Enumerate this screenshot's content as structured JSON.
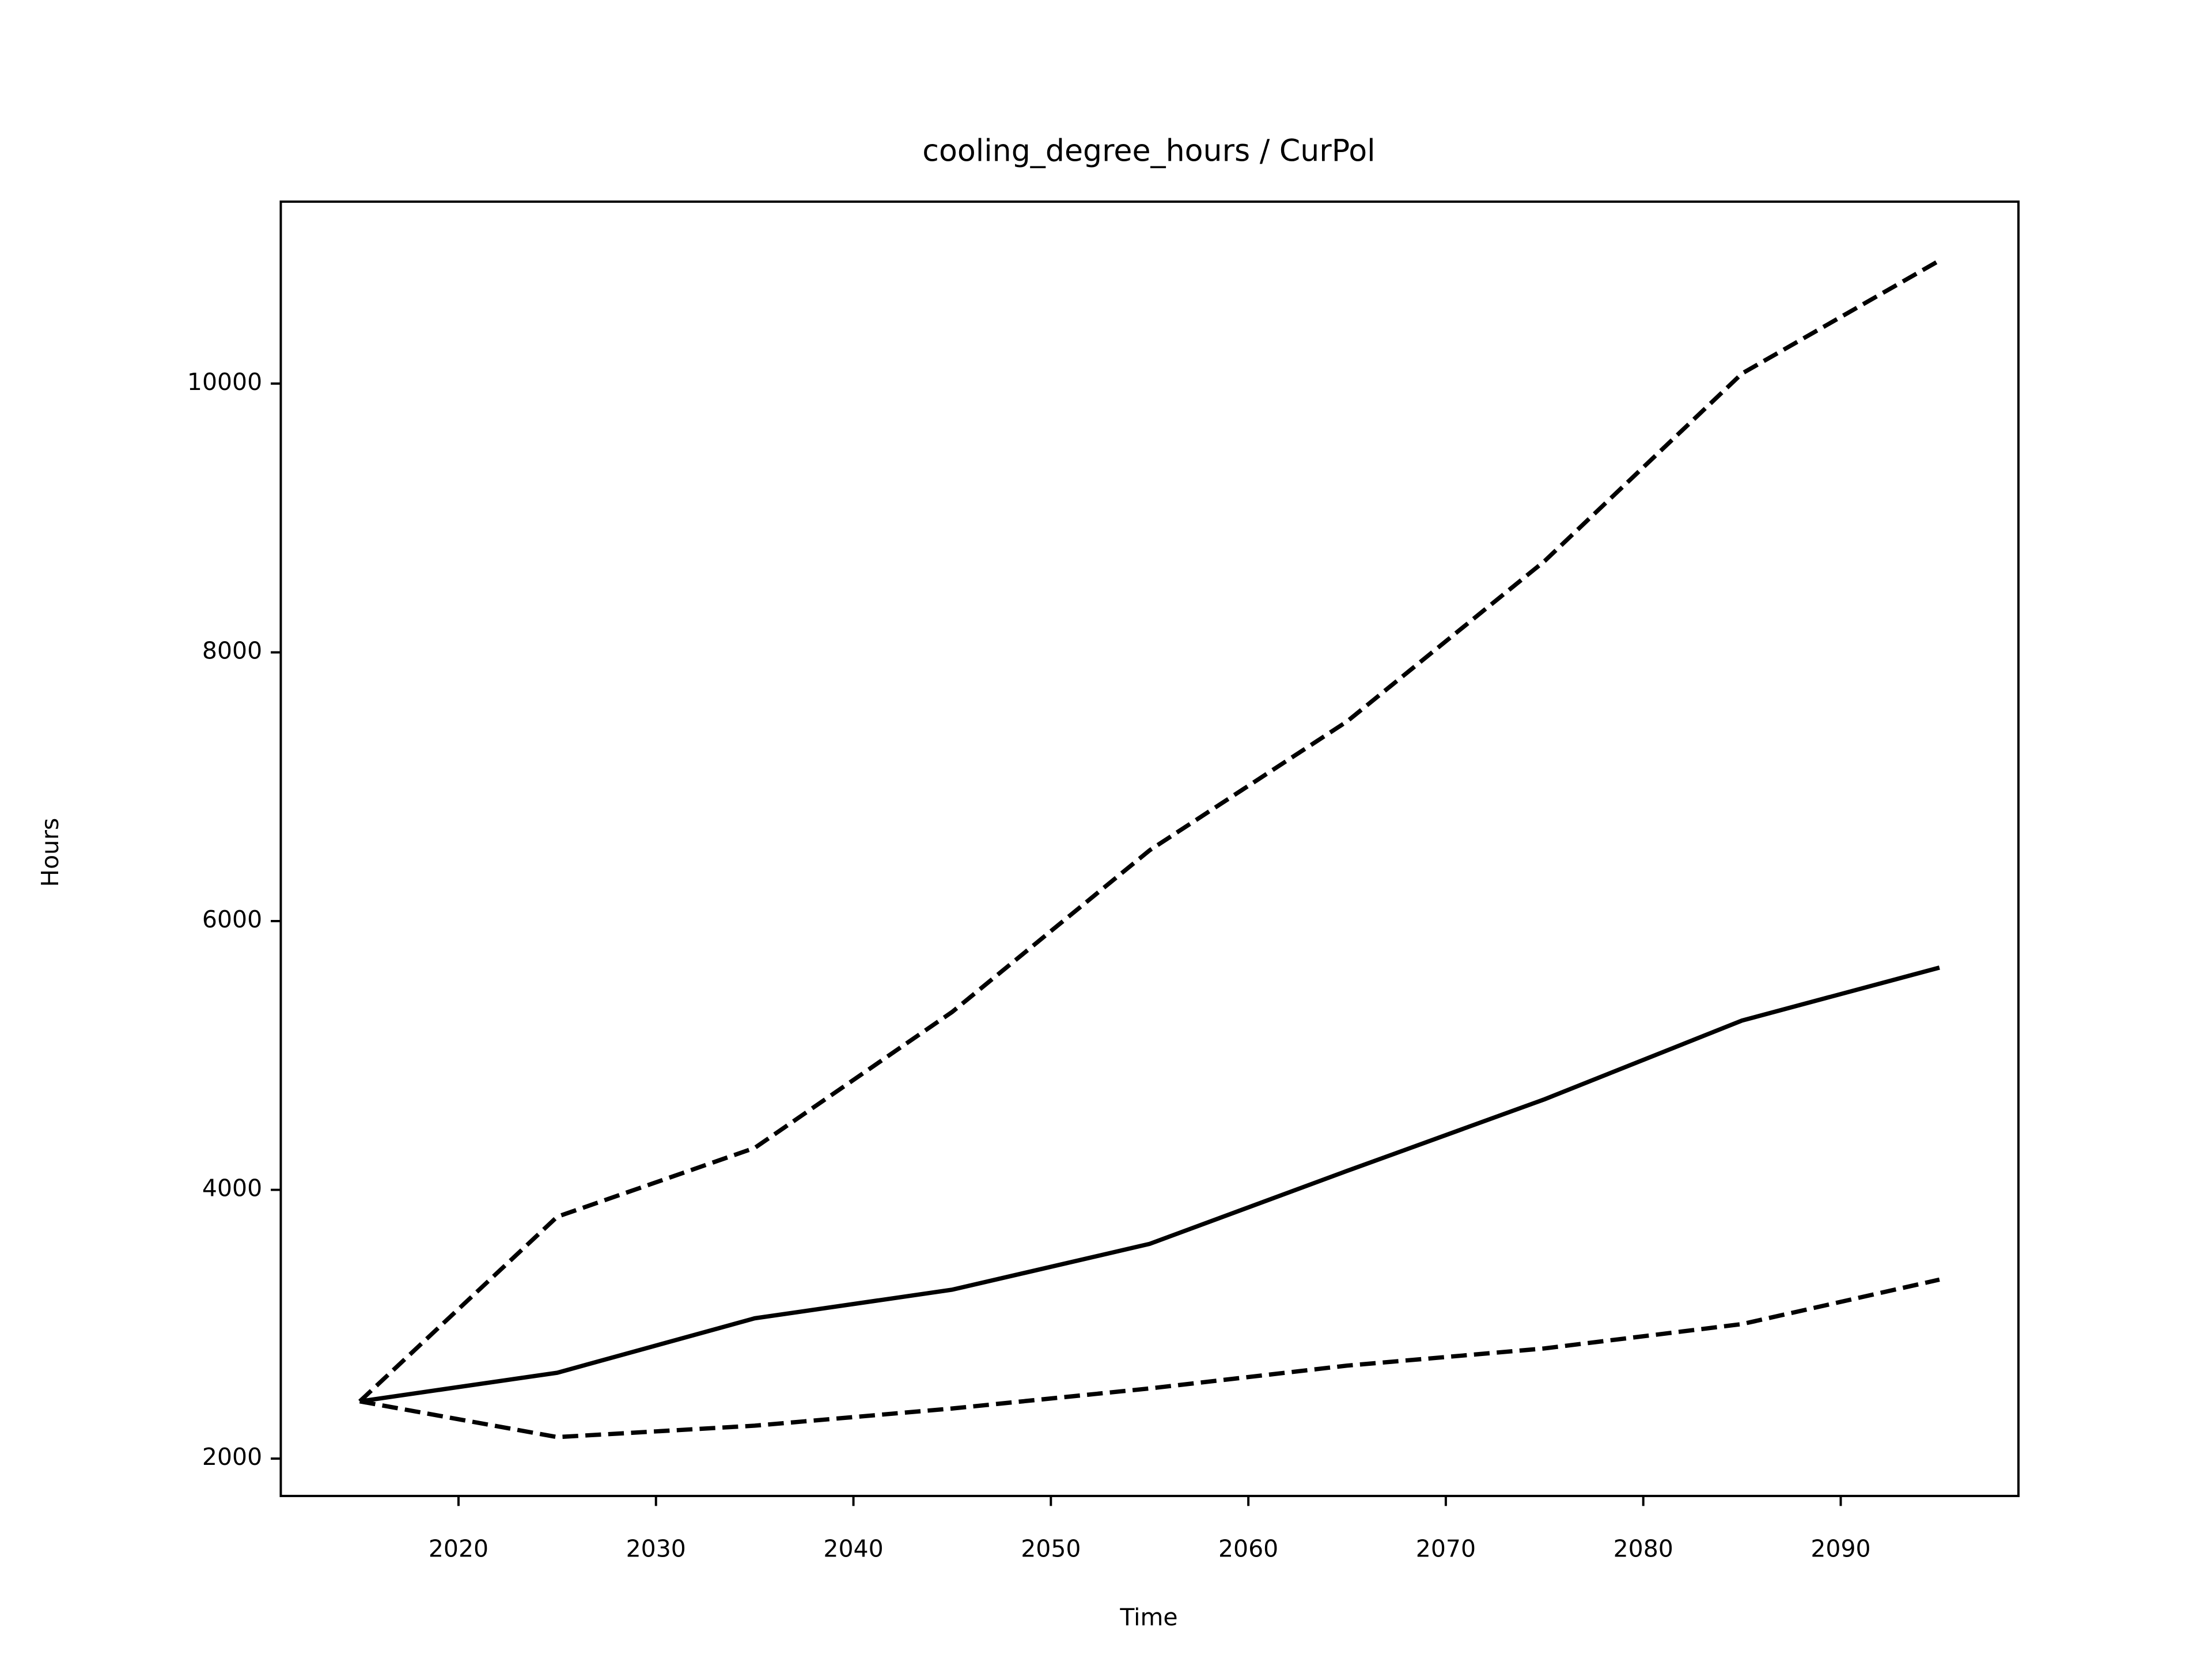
{
  "chart_data": {
    "type": "line",
    "title": "cooling_degree_hours / CurPol",
    "x_label": "Time",
    "y_label": "Hours",
    "x": [
      2015,
      2025,
      2035,
      2045,
      2055,
      2065,
      2075,
      2085,
      2095
    ],
    "series": [
      {
        "color": "#000000",
        "linestyle": "solid",
        "values": [
          2426,
          2639,
          3044,
          3257,
          3598,
          4141,
          4674,
          5260,
          5654
        ]
      },
      {
        "color": "#000000",
        "linestyle": "dashed",
        "values": [
          2426,
          3800,
          4312,
          5324,
          6527,
          7486,
          8679,
          10075,
          10916
        ]
      },
      {
        "color": "#000000",
        "linestyle": "dashed",
        "values": [
          2426,
          2160,
          2245,
          2373,
          2522,
          2692,
          2820,
          3001,
          3332
        ]
      }
    ],
    "xlim": [
      2011,
      2099
    ],
    "xticks": [
      2020,
      2030,
      2040,
      2050,
      2060,
      2070,
      2080,
      2090
    ],
    "ylim": [
      1722,
      11354
    ],
    "yticks": [
      2000,
      4000,
      6000,
      8000,
      10000
    ],
    "grid": false
  }
}
